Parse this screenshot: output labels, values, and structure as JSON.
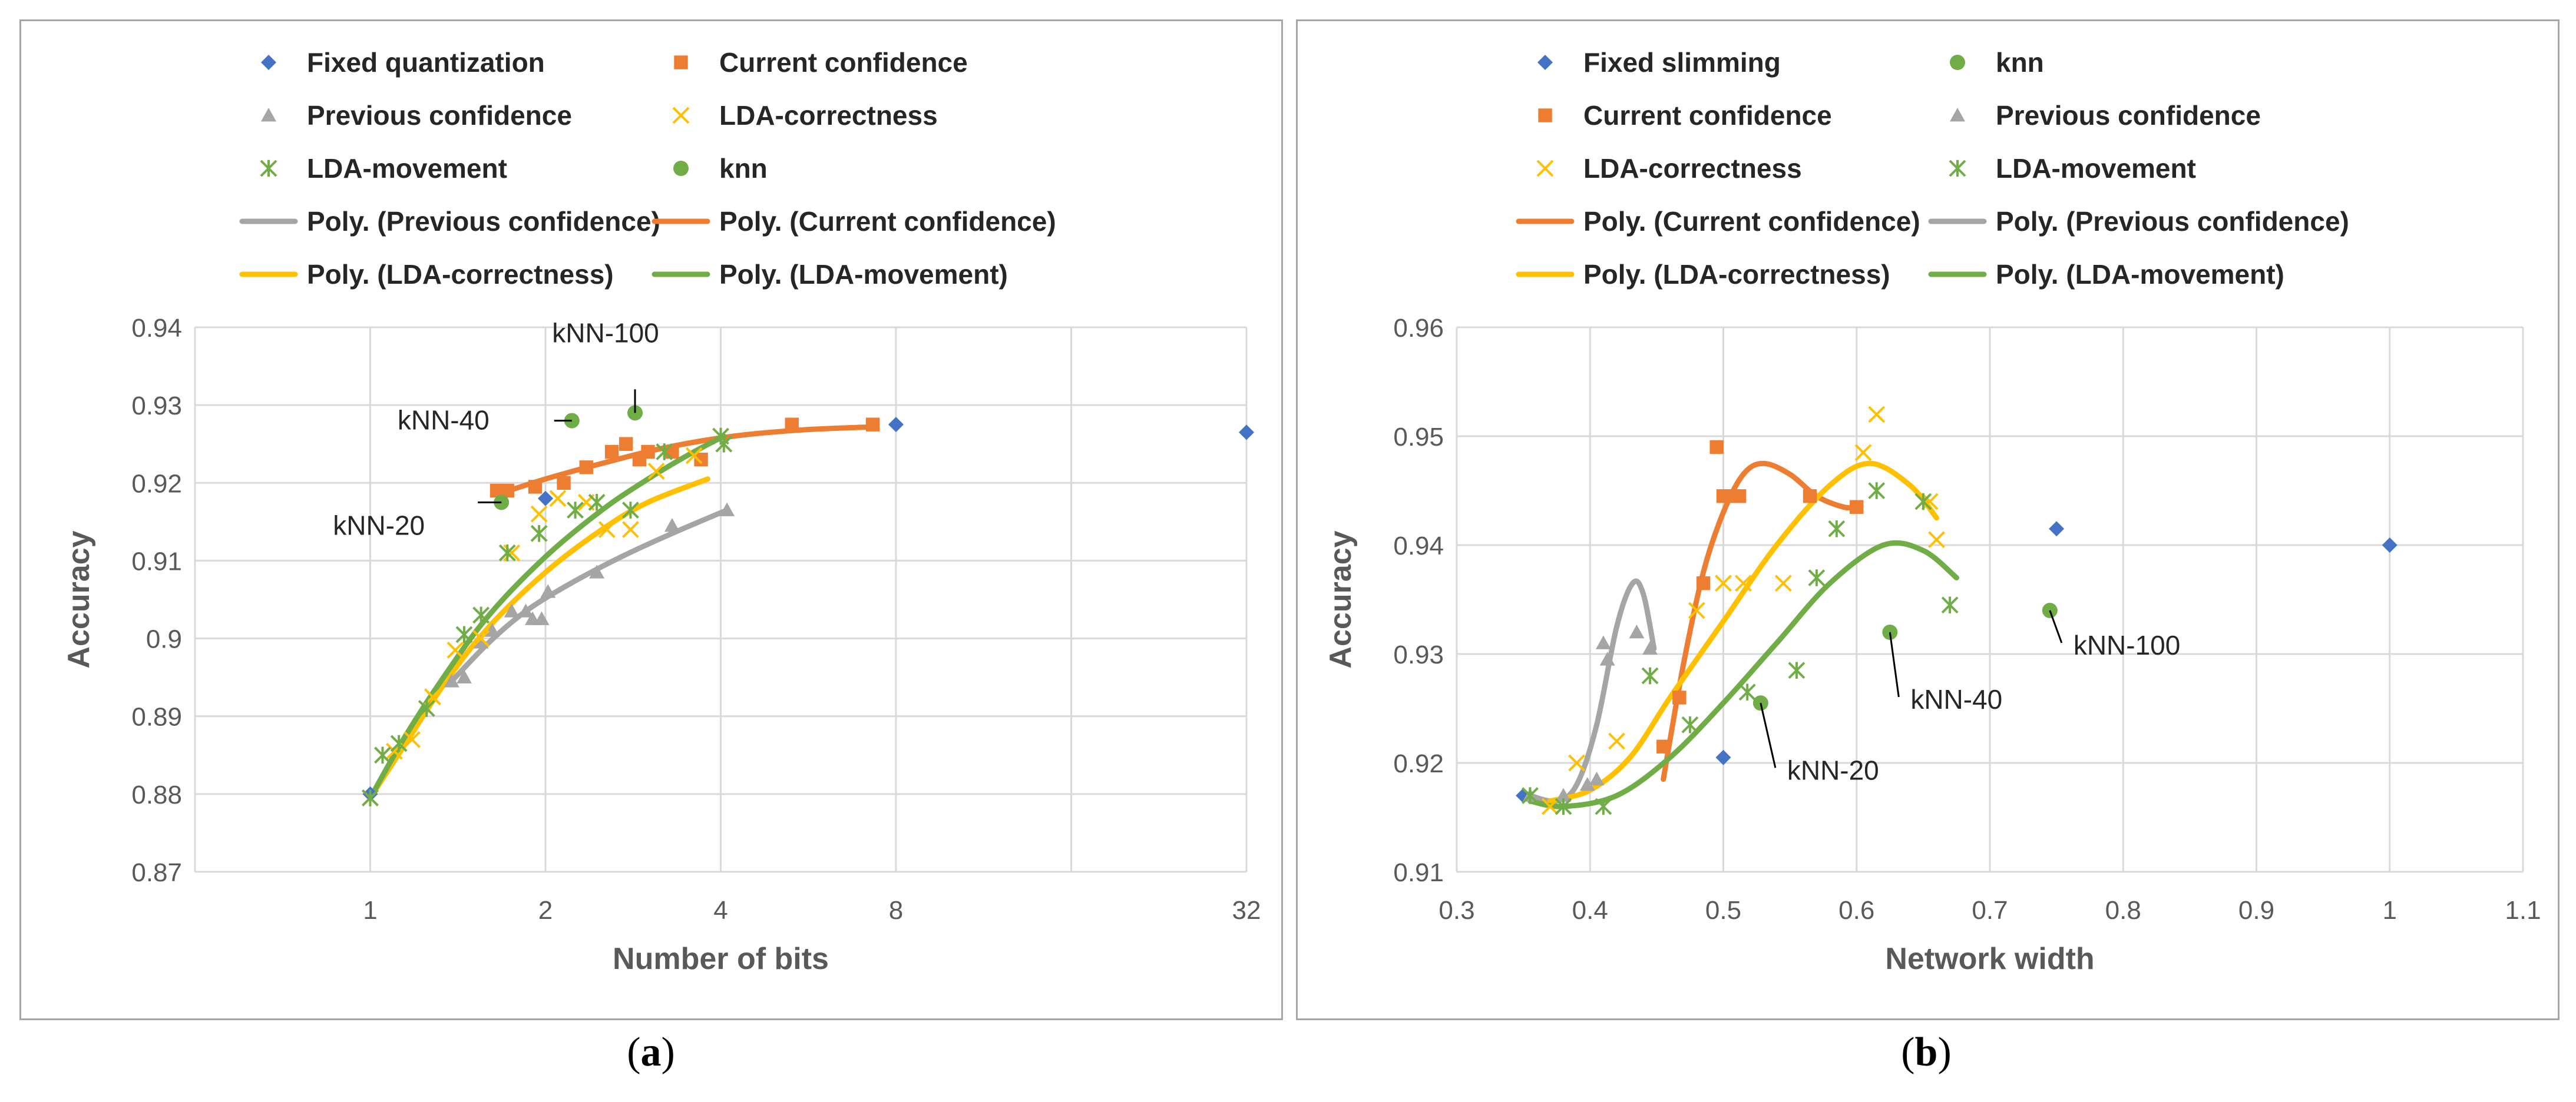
{
  "chart_data": [
    {
      "id": "a",
      "type": "scatter",
      "caption": "a",
      "xlabel": "Number of bits",
      "ylabel": "Accuracy",
      "x_scale": "log2",
      "x_ticks": [
        1,
        2,
        4,
        8,
        32
      ],
      "x_tick_labels": [
        "1",
        "2",
        "4",
        "8",
        "32"
      ],
      "ylim": [
        0.87,
        0.94
      ],
      "y_ticks": [
        "0.87",
        "0.88",
        "0.89",
        "0.9",
        "0.91",
        "0.92",
        "0.93",
        "0.94"
      ],
      "grid": true,
      "legend_position": "top",
      "legend": [
        {
          "label": "Fixed quantization",
          "marker": "diamond",
          "color": "#4472c4"
        },
        {
          "label": "Current confidence",
          "marker": "square",
          "color": "#ed7d31"
        },
        {
          "label": "Previous confidence",
          "marker": "triangle",
          "color": "#a5a5a5"
        },
        {
          "label": "LDA-correctness",
          "marker": "x",
          "color": "#ffc000"
        },
        {
          "label": "LDA-movement",
          "marker": "star",
          "color": "#70ad47"
        },
        {
          "label": "knn",
          "marker": "circle",
          "color": "#70ad47"
        },
        {
          "label": "Poly. (Previous confidence)",
          "marker": "line",
          "color": "#a5a5a5"
        },
        {
          "label": "Poly. (Current confidence)",
          "marker": "line",
          "color": "#ed7d31"
        },
        {
          "label": "Poly. (LDA-correctness)",
          "marker": "line",
          "color": "#ffc000"
        },
        {
          "label": "Poly. (LDA-movement)",
          "marker": "line",
          "color": "#70ad47"
        }
      ],
      "series": [
        {
          "name": "Fixed quantization",
          "marker": "diamond",
          "color": "#4472c4",
          "points": [
            [
              1,
              0.88
            ],
            [
              2,
              0.918
            ],
            [
              8,
              0.9275
            ],
            [
              32,
              0.9265
            ]
          ]
        },
        {
          "name": "Current confidence",
          "marker": "square",
          "color": "#ed7d31",
          "points": [
            [
              1.65,
              0.919
            ],
            [
              1.72,
              0.919
            ],
            [
              1.92,
              0.9195
            ],
            [
              2.15,
              0.92
            ],
            [
              2.35,
              0.922
            ],
            [
              2.6,
              0.924
            ],
            [
              2.75,
              0.925
            ],
            [
              2.9,
              0.923
            ],
            [
              3.0,
              0.924
            ],
            [
              3.3,
              0.924
            ],
            [
              3.7,
              0.923
            ],
            [
              5.3,
              0.9275
            ],
            [
              7.3,
              0.9275
            ]
          ]
        },
        {
          "name": "Previous confidence",
          "marker": "triangle",
          "color": "#a5a5a5",
          "points": [
            [
              1.38,
              0.8945
            ],
            [
              1.45,
              0.895
            ],
            [
              1.55,
              0.8995
            ],
            [
              1.62,
              0.901
            ],
            [
              1.75,
              0.9035
            ],
            [
              1.85,
              0.9035
            ],
            [
              1.9,
              0.9025
            ],
            [
              1.97,
              0.9025
            ],
            [
              2.02,
              0.906
            ],
            [
              2.45,
              0.9085
            ],
            [
              3.3,
              0.9145
            ],
            [
              4.1,
              0.9165
            ]
          ]
        },
        {
          "name": "LDA-correctness",
          "marker": "x",
          "color": "#ffc000",
          "points": [
            [
              1.0,
              0.8795
            ],
            [
              1.1,
              0.8855
            ],
            [
              1.18,
              0.887
            ],
            [
              1.28,
              0.8925
            ],
            [
              1.4,
              0.8985
            ],
            [
              1.55,
              0.9
            ],
            [
              1.75,
              0.911
            ],
            [
              1.95,
              0.916
            ],
            [
              2.1,
              0.918
            ],
            [
              2.35,
              0.9175
            ],
            [
              2.55,
              0.914
            ],
            [
              2.8,
              0.914
            ],
            [
              3.1,
              0.9215
            ],
            [
              3.6,
              0.9235
            ]
          ]
        },
        {
          "name": "LDA-movement",
          "marker": "star",
          "color": "#70ad47",
          "points": [
            [
              1.0,
              0.8795
            ],
            [
              1.05,
              0.885
            ],
            [
              1.12,
              0.8865
            ],
            [
              1.25,
              0.891
            ],
            [
              1.45,
              0.9005
            ],
            [
              1.55,
              0.903
            ],
            [
              1.72,
              0.911
            ],
            [
              1.95,
              0.9135
            ],
            [
              2.25,
              0.9165
            ],
            [
              2.45,
              0.9175
            ],
            [
              2.8,
              0.9165
            ],
            [
              3.2,
              0.924
            ],
            [
              4.0,
              0.926
            ],
            [
              4.05,
              0.925
            ]
          ]
        },
        {
          "name": "knn",
          "marker": "circle",
          "color": "#70ad47",
          "points": [
            [
              1.68,
              0.9175
            ],
            [
              2.22,
              0.928
            ],
            [
              2.85,
              0.929
            ]
          ]
        }
      ],
      "trendlines": [
        {
          "name": "Poly. (Previous confidence)",
          "color": "#a5a5a5",
          "points": [
            [
              1.38,
              0.8945
            ],
            [
              1.6,
              0.8995
            ],
            [
              1.85,
              0.9035
            ],
            [
              2.2,
              0.907
            ],
            [
              2.7,
              0.9105
            ],
            [
              3.3,
              0.9135
            ],
            [
              4.1,
              0.9165
            ]
          ]
        },
        {
          "name": "Poly. (Current confidence)",
          "color": "#ed7d31",
          "points": [
            [
              1.65,
              0.9185
            ],
            [
              2.0,
              0.9205
            ],
            [
              2.5,
              0.9225
            ],
            [
              3.2,
              0.9245
            ],
            [
              4.2,
              0.926
            ],
            [
              5.5,
              0.9268
            ],
            [
              7.3,
              0.9272
            ]
          ]
        },
        {
          "name": "Poly. (LDA-correctness)",
          "color": "#ffc000",
          "points": [
            [
              1.0,
              0.8795
            ],
            [
              1.15,
              0.8865
            ],
            [
              1.35,
              0.8945
            ],
            [
              1.6,
              0.9015
            ],
            [
              2.0,
              0.9085
            ],
            [
              2.5,
              0.914
            ],
            [
              3.0,
              0.9175
            ],
            [
              3.8,
              0.9205
            ]
          ]
        },
        {
          "name": "Poly. (LDA-movement)",
          "color": "#70ad47",
          "points": [
            [
              1.0,
              0.8795
            ],
            [
              1.15,
              0.8875
            ],
            [
              1.35,
              0.8955
            ],
            [
              1.6,
              0.903
            ],
            [
              2.0,
              0.9105
            ],
            [
              2.5,
              0.9165
            ],
            [
              3.0,
              0.9205
            ],
            [
              3.5,
              0.9235
            ],
            [
              4.05,
              0.926
            ]
          ]
        }
      ],
      "annotations": [
        {
          "text": "kNN-20",
          "x": 1.68,
          "y": 0.9175
        },
        {
          "text": "kNN-40",
          "x": 2.22,
          "y": 0.928
        },
        {
          "text": "kNN-100",
          "x": 2.85,
          "y": 0.929
        }
      ]
    },
    {
      "id": "b",
      "type": "scatter",
      "caption": "b",
      "xlabel": "Network width",
      "ylabel": "Accuracy",
      "xlim": [
        0.3,
        1.1
      ],
      "x_ticks": [
        "0.3",
        "0.4",
        "0.5",
        "0.6",
        "0.7",
        "0.8",
        "0.9",
        "1",
        "1.1"
      ],
      "ylim": [
        0.91,
        0.96
      ],
      "y_ticks": [
        "0.91",
        "0.92",
        "0.93",
        "0.94",
        "0.95",
        "0.96"
      ],
      "grid": true,
      "legend_position": "top",
      "legend": [
        {
          "label": "Fixed slimming",
          "marker": "diamond",
          "color": "#4472c4"
        },
        {
          "label": "knn",
          "marker": "circle",
          "color": "#70ad47"
        },
        {
          "label": "Current confidence",
          "marker": "square",
          "color": "#ed7d31"
        },
        {
          "label": "Previous confidence",
          "marker": "triangle",
          "color": "#a5a5a5"
        },
        {
          "label": "LDA-correctness",
          "marker": "x",
          "color": "#ffc000"
        },
        {
          "label": "LDA-movement",
          "marker": "star",
          "color": "#70ad47"
        },
        {
          "label": "Poly. (Current confidence)",
          "marker": "line",
          "color": "#ed7d31"
        },
        {
          "label": "Poly. (Previous confidence)",
          "marker": "line",
          "color": "#a5a5a5"
        },
        {
          "label": "Poly. (LDA-correctness)",
          "marker": "line",
          "color": "#ffc000"
        },
        {
          "label": "Poly. (LDA-movement)",
          "marker": "line",
          "color": "#70ad47"
        }
      ],
      "series": [
        {
          "name": "Fixed slimming",
          "marker": "diamond",
          "color": "#4472c4",
          "points": [
            [
              0.35,
              0.917
            ],
            [
              0.5,
              0.9205
            ],
            [
              0.75,
              0.9415
            ],
            [
              1.0,
              0.94
            ]
          ]
        },
        {
          "name": "knn",
          "marker": "circle",
          "color": "#70ad47",
          "points": [
            [
              0.528,
              0.9255
            ],
            [
              0.625,
              0.932
            ],
            [
              0.745,
              0.934
            ]
          ]
        },
        {
          "name": "Current confidence",
          "marker": "square",
          "color": "#ed7d31",
          "points": [
            [
              0.455,
              0.9215
            ],
            [
              0.467,
              0.926
            ],
            [
              0.485,
              0.9365
            ],
            [
              0.495,
              0.949
            ],
            [
              0.5,
              0.9445
            ],
            [
              0.507,
              0.9445
            ],
            [
              0.512,
              0.9445
            ],
            [
              0.565,
              0.9445
            ],
            [
              0.6,
              0.9435
            ]
          ]
        },
        {
          "name": "Previous confidence",
          "marker": "triangle",
          "color": "#a5a5a5",
          "points": [
            [
              0.355,
              0.917
            ],
            [
              0.38,
              0.917
            ],
            [
              0.398,
              0.918
            ],
            [
              0.405,
              0.9185
            ],
            [
              0.41,
              0.931
            ],
            [
              0.413,
              0.9295
            ],
            [
              0.435,
              0.932
            ],
            [
              0.445,
              0.9305
            ]
          ]
        },
        {
          "name": "LDA-correctness",
          "marker": "x",
          "color": "#ffc000",
          "points": [
            [
              0.37,
              0.916
            ],
            [
              0.39,
              0.92
            ],
            [
              0.42,
              0.922
            ],
            [
              0.48,
              0.934
            ],
            [
              0.5,
              0.9365
            ],
            [
              0.515,
              0.9365
            ],
            [
              0.545,
              0.9365
            ],
            [
              0.605,
              0.9485
            ],
            [
              0.615,
              0.952
            ],
            [
              0.66,
              0.9405
            ],
            [
              0.655,
              0.944
            ]
          ]
        },
        {
          "name": "LDA-movement",
          "marker": "star",
          "color": "#70ad47",
          "points": [
            [
              0.355,
              0.917
            ],
            [
              0.38,
              0.916
            ],
            [
              0.41,
              0.916
            ],
            [
              0.445,
              0.928
            ],
            [
              0.475,
              0.9235
            ],
            [
              0.518,
              0.9265
            ],
            [
              0.555,
              0.9285
            ],
            [
              0.57,
              0.937
            ],
            [
              0.585,
              0.9415
            ],
            [
              0.615,
              0.945
            ],
            [
              0.65,
              0.944
            ],
            [
              0.67,
              0.9345
            ]
          ]
        }
      ],
      "trendlines": [
        {
          "name": "Poly. (Current confidence)",
          "color": "#ed7d31",
          "points": [
            [
              0.455,
              0.9185
            ],
            [
              0.47,
              0.929
            ],
            [
              0.485,
              0.9375
            ],
            [
              0.5,
              0.943
            ],
            [
              0.515,
              0.9465
            ],
            [
              0.53,
              0.9475
            ],
            [
              0.55,
              0.9465
            ],
            [
              0.57,
              0.9445
            ],
            [
              0.59,
              0.9435
            ],
            [
              0.6,
              0.9435
            ]
          ]
        },
        {
          "name": "Poly. (Previous confidence)",
          "color": "#a5a5a5",
          "points": [
            [
              0.355,
              0.917
            ],
            [
              0.375,
              0.9165
            ],
            [
              0.39,
              0.918
            ],
            [
              0.405,
              0.9235
            ],
            [
              0.42,
              0.9325
            ],
            [
              0.432,
              0.9365
            ],
            [
              0.44,
              0.9355
            ],
            [
              0.448,
              0.9305
            ]
          ]
        },
        {
          "name": "Poly. (LDA-correctness)",
          "color": "#ffc000",
          "points": [
            [
              0.37,
              0.9165
            ],
            [
              0.4,
              0.9175
            ],
            [
              0.43,
              0.9205
            ],
            [
              0.46,
              0.926
            ],
            [
              0.5,
              0.933
            ],
            [
              0.54,
              0.94
            ],
            [
              0.58,
              0.9455
            ],
            [
              0.61,
              0.9475
            ],
            [
              0.64,
              0.9455
            ],
            [
              0.66,
              0.9425
            ]
          ]
        },
        {
          "name": "Poly. (LDA-movement)",
          "color": "#70ad47",
          "points": [
            [
              0.355,
              0.9165
            ],
            [
              0.38,
              0.916
            ],
            [
              0.42,
              0.917
            ],
            [
              0.46,
              0.9205
            ],
            [
              0.5,
              0.9255
            ],
            [
              0.54,
              0.931
            ],
            [
              0.58,
              0.9365
            ],
            [
              0.62,
              0.94
            ],
            [
              0.65,
              0.9395
            ],
            [
              0.675,
              0.937
            ]
          ]
        }
      ],
      "annotations": [
        {
          "text": "kNN-20",
          "x": 0.528,
          "y": 0.9255
        },
        {
          "text": "kNN-40",
          "x": 0.625,
          "y": 0.932
        },
        {
          "text": "kNN-100",
          "x": 0.745,
          "y": 0.934
        }
      ]
    }
  ]
}
